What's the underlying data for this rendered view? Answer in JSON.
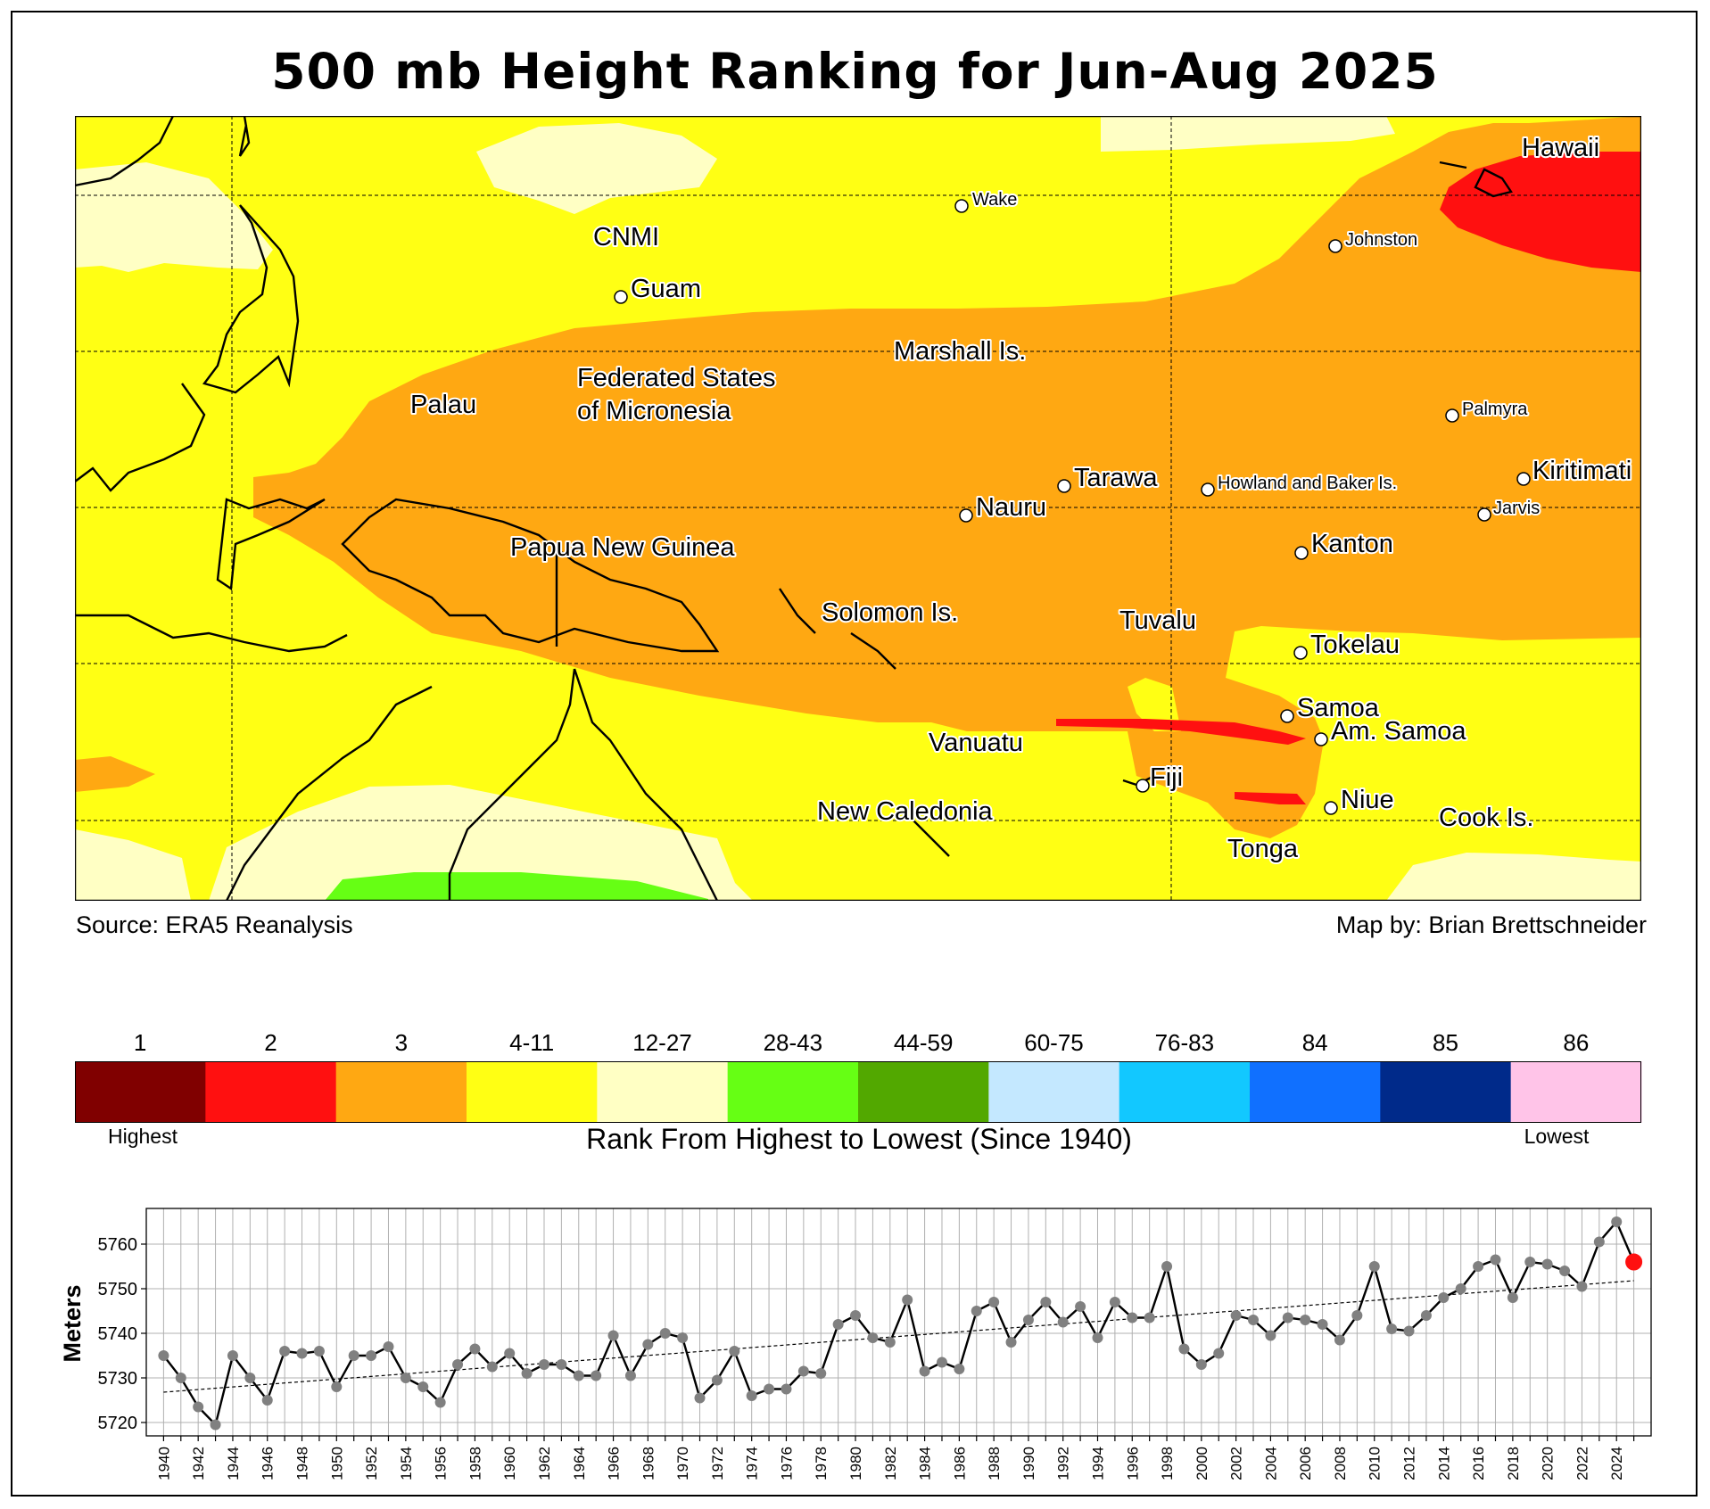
{
  "title": "500 mb Height Ranking for Jun-Aug 2025",
  "source": "Source: ERA5 Reanalysis",
  "credit": "Map by: Brian Brettschneider",
  "map": {
    "labels": {
      "hawaii": "Hawaii",
      "wake": "Wake",
      "johnston": "Johnston",
      "cnmi": "CNMI",
      "guam": "Guam",
      "marshall": "Marshall Is.",
      "fsm1": "Federated States",
      "fsm2": "of Micronesia",
      "palau": "Palau",
      "palmyra": "Palmyra",
      "kiritimati": "Kiritimati",
      "tarawa": "Tarawa",
      "howland": "Howland and Baker Is.",
      "jarvis": "Jarvis",
      "nauru": "Nauru",
      "png": "Papua New Guinea",
      "kanton": "Kanton",
      "solomon": "Solomon Is.",
      "tuvalu": "Tuvalu",
      "tokelau": "Tokelau",
      "samoa": "Samoa",
      "amsamoa": "Am. Samoa",
      "vanuatu": "Vanuatu",
      "fiji": "Fiji",
      "niue": "Niue",
      "newcal": "New Caledonia",
      "cook": "Cook Is.",
      "tonga": "Tonga"
    }
  },
  "colorbar": {
    "title": "Rank From Highest to Lowest (Since 1940)",
    "low_end": "Highest",
    "high_end": "Lowest",
    "bins": [
      {
        "label": "1",
        "color": "#800000"
      },
      {
        "label": "2",
        "color": "#ff1010"
      },
      {
        "label": "3",
        "color": "#ffa812"
      },
      {
        "label": "4-11",
        "color": "#ffff14"
      },
      {
        "label": "12-27",
        "color": "#ffffc4"
      },
      {
        "label": "28-43",
        "color": "#66ff14"
      },
      {
        "label": "44-59",
        "color": "#52a800"
      },
      {
        "label": "60-75",
        "color": "#c4e8ff"
      },
      {
        "label": "76-83",
        "color": "#12c8ff"
      },
      {
        "label": "84",
        "color": "#1070ff"
      },
      {
        "label": "85",
        "color": "#002a8a"
      },
      {
        "label": "86",
        "color": "#ffc4e8"
      }
    ]
  },
  "chart_data": {
    "type": "line",
    "ylabel": "Meters",
    "ylim": [
      5717,
      5768
    ],
    "yticks": [
      5720,
      5730,
      5740,
      5750,
      5760
    ],
    "xlim": [
      1939,
      2026
    ],
    "xtick_step": 2,
    "grid": true,
    "trendline": {
      "start": [
        1940,
        5726.8
      ],
      "end": [
        2025,
        5751.8
      ]
    },
    "highlight": {
      "year": 2025,
      "value": 5756,
      "color": "#ff1010"
    },
    "x": [
      1940,
      1941,
      1942,
      1943,
      1944,
      1945,
      1946,
      1947,
      1948,
      1949,
      1950,
      1951,
      1952,
      1953,
      1954,
      1955,
      1956,
      1957,
      1958,
      1959,
      1960,
      1961,
      1962,
      1963,
      1964,
      1965,
      1966,
      1967,
      1968,
      1969,
      1970,
      1971,
      1972,
      1973,
      1974,
      1975,
      1976,
      1977,
      1978,
      1979,
      1980,
      1981,
      1982,
      1983,
      1984,
      1985,
      1986,
      1987,
      1988,
      1989,
      1990,
      1991,
      1992,
      1993,
      1994,
      1995,
      1996,
      1997,
      1998,
      1999,
      2000,
      2001,
      2002,
      2003,
      2004,
      2005,
      2006,
      2007,
      2008,
      2009,
      2010,
      2011,
      2012,
      2013,
      2014,
      2015,
      2016,
      2017,
      2018,
      2019,
      2020,
      2021,
      2022,
      2023,
      2024,
      2025
    ],
    "values": [
      5735,
      5730,
      5723.5,
      5719.5,
      5735,
      5730,
      5725,
      5736,
      5735.5,
      5736,
      5728,
      5735,
      5735,
      5737,
      5730,
      5728,
      5724.5,
      5733,
      5736.5,
      5732.5,
      5735.5,
      5731,
      5733,
      5733,
      5730.5,
      5730.5,
      5739.5,
      5730.5,
      5737.5,
      5740,
      5739,
      5725.5,
      5729.5,
      5736,
      5726,
      5727.5,
      5727.5,
      5731.5,
      5731,
      5742,
      5744,
      5739,
      5738,
      5747.5,
      5731.5,
      5733.5,
      5732,
      5745,
      5747,
      5738,
      5743,
      5747,
      5742.5,
      5746,
      5739,
      5747,
      5743.5,
      5743.5,
      5755,
      5736.5,
      5733,
      5735.5,
      5744,
      5743,
      5739.5,
      5743.5,
      5743,
      5742,
      5738.5,
      5744,
      5755,
      5741,
      5740.5,
      5744,
      5748,
      5750,
      5755,
      5756.5,
      5748,
      5756,
      5755.5,
      5754,
      5750.5,
      5760.5,
      5765,
      5756
    ]
  }
}
